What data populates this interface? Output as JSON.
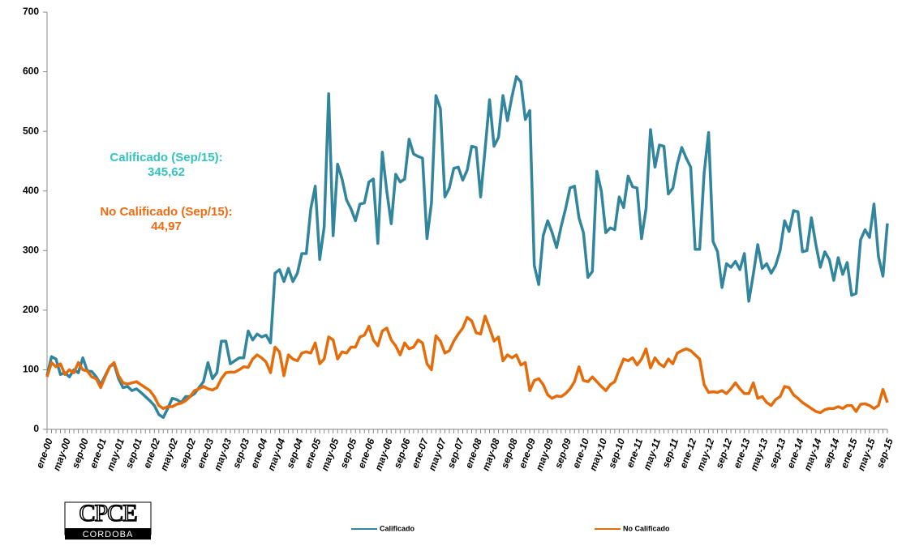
{
  "chart_data": {
    "type": "line",
    "categories": [
      "ene-00",
      null,
      null,
      null,
      "may-00",
      null,
      null,
      null,
      "sep-00",
      null,
      null,
      null,
      "ene-01",
      null,
      null,
      null,
      "may-01",
      null,
      null,
      null,
      "sep-01",
      null,
      null,
      null,
      "ene-02",
      null,
      null,
      null,
      "may-02",
      null,
      null,
      null,
      "sep-02",
      null,
      null,
      null,
      "ene-03",
      null,
      null,
      null,
      "may-03",
      null,
      null,
      null,
      "sep-03",
      null,
      null,
      null,
      "ene-04",
      null,
      null,
      null,
      "may-04",
      null,
      null,
      null,
      "sep-04",
      null,
      null,
      null,
      "ene-05",
      null,
      null,
      null,
      "may-05",
      null,
      null,
      null,
      "sep-05",
      null,
      null,
      null,
      "ene-06",
      null,
      null,
      null,
      "may-06",
      null,
      null,
      null,
      "sep-06",
      null,
      null,
      null,
      "ene-07",
      null,
      null,
      null,
      "may-07",
      null,
      null,
      null,
      "sep-07",
      null,
      null,
      null,
      "ene-08",
      null,
      null,
      null,
      "may-08",
      null,
      null,
      null,
      "sep-08",
      null,
      null,
      null,
      "ene-09",
      null,
      null,
      null,
      "may-09",
      null,
      null,
      null,
      "sep-09",
      null,
      null,
      null,
      "ene-10",
      null,
      null,
      null,
      "may-10",
      null,
      null,
      null,
      "sep-10",
      null,
      null,
      null,
      "ene-11",
      null,
      null,
      null,
      "may-11",
      null,
      null,
      null,
      "sep-11",
      null,
      null,
      null,
      "ene-12",
      null,
      null,
      null,
      "may-12",
      null,
      null,
      null,
      "sep-12",
      null,
      null,
      null,
      "ene-13",
      null,
      null,
      null,
      "may-13",
      null,
      null,
      null,
      "sep-13",
      null,
      null,
      null,
      "ene-14",
      null,
      null,
      null,
      "may-14",
      null,
      null,
      null,
      "sep-14",
      null,
      null,
      null,
      "ene-15",
      null,
      null,
      null,
      "may-15",
      null,
      null,
      null,
      "sep-15"
    ],
    "series": [
      {
        "name": "Calificado",
        "color": "#31859c",
        "values": [
          90,
          122,
          118,
          92,
          95,
          88,
          100,
          95,
          120,
          98,
          97,
          88,
          75,
          90,
          105,
          110,
          85,
          70,
          72,
          65,
          68,
          62,
          55,
          48,
          40,
          25,
          20,
          35,
          52,
          50,
          45,
          55,
          55,
          60,
          70,
          80,
          112,
          85,
          95,
          148,
          148,
          110,
          115,
          120,
          120,
          165,
          150,
          160,
          155,
          158,
          145,
          262,
          268,
          248,
          270,
          248,
          262,
          295,
          295,
          370,
          408,
          285,
          340,
          563,
          325,
          445,
          420,
          385,
          370,
          350,
          378,
          380,
          415,
          420,
          312,
          465,
          400,
          345,
          428,
          415,
          420,
          487,
          462,
          458,
          455,
          320,
          380,
          560,
          538,
          390,
          405,
          438,
          440,
          418,
          435,
          475,
          473,
          390,
          470,
          553,
          475,
          490,
          560,
          518,
          558,
          592,
          583,
          520,
          535,
          275,
          243,
          325,
          350,
          330,
          305,
          340,
          370,
          405,
          408,
          355,
          330,
          255,
          265,
          433,
          400,
          330,
          338,
          335,
          390,
          372,
          425,
          407,
          405,
          320,
          370,
          503,
          440,
          477,
          475,
          395,
          405,
          445,
          473,
          455,
          440,
          302,
          302,
          430,
          498,
          315,
          298,
          238,
          278,
          272,
          282,
          268,
          295,
          215,
          260,
          310,
          270,
          278,
          262,
          275,
          300,
          350,
          332,
          367,
          365,
          298,
          300,
          355,
          310,
          272,
          298,
          285,
          250,
          288,
          260,
          280,
          225,
          228,
          318,
          335,
          322,
          378,
          290,
          257,
          345.62
        ]
      },
      {
        "name": "No Calificado",
        "color": "#e46c0a",
        "values": [
          88,
          112,
          105,
          110,
          92,
          100,
          95,
          112,
          100,
          98,
          88,
          85,
          70,
          88,
          105,
          112,
          90,
          78,
          76,
          78,
          80,
          75,
          70,
          65,
          55,
          40,
          35,
          38,
          38,
          42,
          44,
          48,
          55,
          65,
          68,
          72,
          68,
          66,
          70,
          85,
          95,
          96,
          96,
          100,
          105,
          104,
          118,
          125,
          120,
          113,
          95,
          138,
          130,
          90,
          125,
          118,
          115,
          128,
          130,
          128,
          145,
          110,
          118,
          155,
          150,
          118,
          130,
          128,
          138,
          138,
          155,
          158,
          173,
          150,
          140,
          165,
          170,
          150,
          140,
          125,
          145,
          135,
          138,
          150,
          145,
          110,
          100,
          157,
          148,
          128,
          132,
          148,
          160,
          170,
          188,
          182,
          162,
          160,
          190,
          170,
          148,
          155,
          115,
          125,
          120,
          125,
          108,
          112,
          65,
          82,
          85,
          75,
          58,
          52,
          56,
          55,
          60,
          68,
          80,
          105,
          82,
          80,
          88,
          80,
          72,
          65,
          75,
          80,
          100,
          118,
          115,
          120,
          108,
          118,
          135,
          103,
          120,
          110,
          105,
          118,
          110,
          128,
          132,
          135,
          132,
          125,
          118,
          75,
          62,
          63,
          62,
          65,
          60,
          68,
          78,
          68,
          60,
          60,
          78,
          52,
          55,
          45,
          40,
          50,
          55,
          72,
          70,
          58,
          52,
          45,
          40,
          35,
          30,
          28,
          33,
          35,
          35,
          38,
          35,
          40,
          40,
          30,
          42,
          43,
          40,
          35,
          40,
          67,
          44.97
        ]
      }
    ],
    "annotations": [
      {
        "label": "Calificado (Sep/15):",
        "value": "345,62",
        "color": "#33c3c0"
      },
      {
        "label": "No Calificado (Sep/15):",
        "value": "44,97",
        "color": "#f06a10"
      }
    ],
    "ylim": [
      0,
      700
    ],
    "yticks": [
      0,
      100,
      200,
      300,
      400,
      500,
      600,
      700
    ],
    "grid": false
  },
  "logo": {
    "top": "CPCE",
    "bottom": "CORDOBA"
  }
}
